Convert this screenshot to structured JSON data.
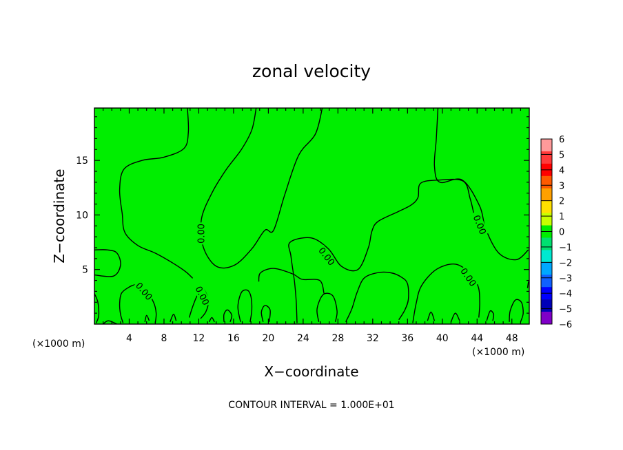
{
  "chart_data": {
    "type": "heatmap",
    "title": "zonal velocity",
    "xlabel": "X−coordinate",
    "ylabel": "Z−coordinate",
    "x_unit_label": "(×1000 m)",
    "z_unit_label": "(×1000 m)",
    "xlim": [
      0,
      50
    ],
    "ylim": [
      0,
      19.8
    ],
    "x_ticks": [
      4,
      8,
      12,
      16,
      20,
      24,
      28,
      32,
      36,
      40,
      44,
      48
    ],
    "y_ticks": [
      5,
      10,
      15
    ],
    "field_color": "#00ee00",
    "contour_value_label": "0.00",
    "contour_levels": [
      0
    ],
    "contour_label_positions": [
      {
        "x": 12.3,
        "z": 8.3
      },
      {
        "x": 26.7,
        "z": 6.2
      },
      {
        "x": 44.3,
        "z": 9.1
      },
      {
        "x": 5.7,
        "z": 3.0
      },
      {
        "x": 12.4,
        "z": 2.6
      },
      {
        "x": 43.0,
        "z": 4.3
      }
    ],
    "contour_paths": [
      [
        [
          3.3,
          0.1
        ],
        [
          3.0,
          0.9
        ],
        [
          2.9,
          1.9
        ],
        [
          3.1,
          2.8
        ],
        [
          3.8,
          3.3
        ],
        [
          4.8,
          3.6
        ],
        [
          5.9,
          3.1
        ],
        [
          6.8,
          2.0
        ],
        [
          7.1,
          1.0
        ],
        [
          7.0,
          0.1
        ]
      ],
      [
        [
          0.0,
          4.5
        ],
        [
          2.2,
          4.4
        ],
        [
          3.0,
          5.4
        ],
        [
          2.6,
          6.5
        ],
        [
          1.5,
          6.8
        ],
        [
          0.0,
          6.8
        ]
      ],
      [
        [
          10.9,
          0.6
        ],
        [
          11.3,
          1.6
        ],
        [
          11.8,
          2.6
        ],
        [
          12.3,
          3.3
        ],
        [
          12.8,
          2.9
        ],
        [
          13.1,
          2.0
        ],
        [
          12.8,
          1.1
        ],
        [
          12.2,
          0.5
        ]
      ],
      [
        [
          18.6,
          19.8
        ],
        [
          18.1,
          17.8
        ],
        [
          16.9,
          16.0
        ],
        [
          15.1,
          14.1
        ],
        [
          13.5,
          12.0
        ],
        [
          12.3,
          9.6
        ],
        [
          12.5,
          7.1
        ],
        [
          14.0,
          5.3
        ],
        [
          16.1,
          5.4
        ],
        [
          18.1,
          6.9
        ],
        [
          19.6,
          8.6
        ],
        [
          20.6,
          8.6
        ],
        [
          21.9,
          11.9
        ],
        [
          23.5,
          15.5
        ],
        [
          25.4,
          17.4
        ],
        [
          26.2,
          19.8
        ]
      ],
      [
        [
          10.7,
          19.8
        ],
        [
          10.8,
          17.6
        ],
        [
          10.3,
          16.1
        ],
        [
          8.0,
          15.3
        ],
        [
          5.5,
          15.0
        ],
        [
          3.4,
          14.2
        ],
        [
          2.9,
          12.3
        ],
        [
          3.2,
          10.1
        ],
        [
          3.5,
          8.4
        ],
        [
          5.0,
          7.2
        ],
        [
          7.0,
          6.5
        ],
        [
          9.0,
          5.6
        ],
        [
          10.5,
          4.8
        ],
        [
          11.3,
          4.2
        ]
      ],
      [
        [
          23.3,
          0.1
        ],
        [
          23.2,
          2.1
        ],
        [
          23.0,
          3.9
        ],
        [
          22.6,
          6.2
        ],
        [
          22.5,
          7.5
        ],
        [
          24.9,
          7.9
        ],
        [
          26.9,
          6.9
        ],
        [
          28.4,
          5.3
        ],
        [
          30.3,
          5.0
        ],
        [
          31.5,
          7.0
        ],
        [
          31.9,
          8.5
        ],
        [
          32.6,
          9.4
        ],
        [
          34.9,
          10.3
        ],
        [
          36.4,
          10.9
        ],
        [
          37.2,
          11.6
        ],
        [
          37.5,
          12.9
        ],
        [
          39.6,
          13.2
        ],
        [
          42.4,
          13.1
        ],
        [
          43.2,
          11.5
        ],
        [
          43.6,
          10.2
        ]
      ],
      [
        [
          39.5,
          19.8
        ],
        [
          39.3,
          16.9
        ],
        [
          39.1,
          14.5
        ],
        [
          39.7,
          13.0
        ],
        [
          42.3,
          13.2
        ],
        [
          44.3,
          10.8
        ],
        [
          45.0,
          8.7
        ],
        [
          46.5,
          6.5
        ],
        [
          48.5,
          5.9
        ],
        [
          49.9,
          6.8
        ]
      ],
      [
        [
          36.6,
          0.1
        ],
        [
          37.0,
          1.9
        ],
        [
          37.6,
          3.5
        ],
        [
          39.3,
          5.0
        ],
        [
          41.4,
          5.5
        ],
        [
          43.0,
          4.8
        ],
        [
          44.1,
          3.5
        ],
        [
          44.3,
          2.0
        ],
        [
          44.2,
          0.6
        ]
      ],
      [
        [
          25.8,
          0.2
        ],
        [
          25.6,
          1.4
        ],
        [
          26.3,
          2.7
        ],
        [
          27.4,
          2.6
        ],
        [
          27.9,
          1.2
        ],
        [
          27.7,
          0.2
        ]
      ],
      [
        [
          28.9,
          0.2
        ],
        [
          29.6,
          1.4
        ],
        [
          30.2,
          2.9
        ],
        [
          31.0,
          4.2
        ],
        [
          32.5,
          4.7
        ],
        [
          34.1,
          4.7
        ],
        [
          35.3,
          4.3
        ],
        [
          36.0,
          3.7
        ],
        [
          36.1,
          2.3
        ],
        [
          35.7,
          1.3
        ],
        [
          35.0,
          0.4
        ]
      ],
      [
        [
          18.9,
          3.9
        ],
        [
          19.1,
          4.7
        ],
        [
          20.6,
          5.1
        ],
        [
          22.8,
          4.6
        ],
        [
          23.9,
          4.1
        ],
        [
          25.9,
          4.0
        ],
        [
          26.4,
          2.8
        ]
      ],
      [
        [
          16.8,
          0.2
        ],
        [
          16.5,
          1.6
        ],
        [
          16.9,
          2.9
        ],
        [
          17.6,
          3.1
        ],
        [
          18.0,
          2.5
        ],
        [
          18.1,
          1.3
        ],
        [
          17.9,
          0.2
        ]
      ],
      [
        [
          19.4,
          0.2
        ],
        [
          19.2,
          1.1
        ],
        [
          19.6,
          1.7
        ],
        [
          20.2,
          1.3
        ],
        [
          20.1,
          0.2
        ]
      ],
      [
        [
          14.9,
          0.2
        ],
        [
          14.9,
          0.9
        ],
        [
          15.3,
          1.3
        ],
        [
          15.8,
          0.8
        ],
        [
          15.6,
          0.2
        ]
      ],
      [
        [
          47.7,
          0.2
        ],
        [
          47.8,
          1.2
        ],
        [
          48.4,
          2.2
        ],
        [
          49.1,
          2.0
        ],
        [
          49.3,
          1.0
        ],
        [
          49.0,
          0.2
        ]
      ],
      [
        [
          45.1,
          0.3
        ],
        [
          45.5,
          1.2
        ],
        [
          45.9,
          0.9
        ],
        [
          45.8,
          0.3
        ]
      ],
      [
        [
          5.8,
          0.2
        ],
        [
          6.0,
          0.8
        ],
        [
          6.3,
          0.3
        ]
      ],
      [
        [
          8.7,
          0.2
        ],
        [
          9.1,
          0.9
        ],
        [
          9.4,
          0.3
        ]
      ],
      [
        [
          13.2,
          0.2
        ],
        [
          13.5,
          0.6
        ],
        [
          13.8,
          0.2
        ]
      ],
      [
        [
          38.3,
          0.3
        ],
        [
          38.7,
          1.1
        ],
        [
          39.1,
          0.3
        ]
      ],
      [
        [
          41.0,
          0.2
        ],
        [
          41.5,
          1.0
        ],
        [
          42.0,
          0.3
        ]
      ],
      [
        [
          0.0,
          2.8
        ],
        [
          0.4,
          2.0
        ],
        [
          0.5,
          0.8
        ],
        [
          0.2,
          0.1
        ]
      ],
      [
        [
          1.0,
          0.0
        ],
        [
          1.6,
          0.3
        ],
        [
          2.6,
          0.0
        ]
      ],
      [
        [
          49.8,
          3.3
        ],
        [
          49.9,
          3.8
        ],
        [
          50.0,
          4.0
        ]
      ]
    ],
    "colorbar": {
      "labels": [
        "6",
        "5",
        "4",
        "3",
        "2",
        "1",
        "0",
        "−1",
        "−2",
        "−3",
        "−4",
        "−5",
        "−6"
      ],
      "colors": [
        "#ff9a9a",
        "#ff3a3a",
        "#ff0000",
        "#ff5a00",
        "#ffa000",
        "#ffe000",
        "#c8ff00",
        "#00ee00",
        "#00e070",
        "#00e8d0",
        "#00a8ff",
        "#1060ff",
        "#0000ff",
        "#0000b8",
        "#8000c8"
      ]
    }
  },
  "footer": {
    "contour_interval": "CONTOUR INTERVAL = 1.000E+01"
  }
}
